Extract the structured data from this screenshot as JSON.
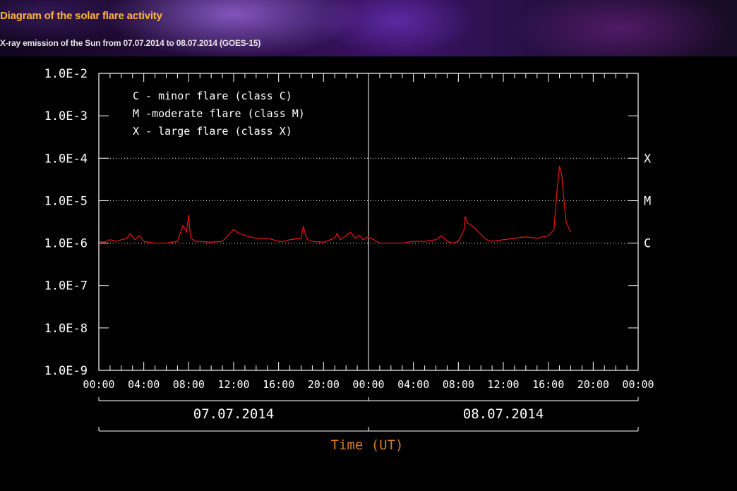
{
  "page": {
    "title": "Diagram of the solar flare activity",
    "subtitle": "X-ray emission of the Sun from 07.07.2014 to 08.07.2014 (GOES-15)"
  },
  "colors": {
    "title": "#ffb43c",
    "axis_label": "#d97a1e",
    "series": "#e31010",
    "axes": "#ffffff"
  },
  "chart_data": {
    "type": "line",
    "xlabel": "Time (UT)",
    "ylabel": "",
    "y_scale": "log",
    "ylim": [
      1e-09,
      0.01
    ],
    "y_tick_labels": [
      "1.0E-9",
      "1.0E-8",
      "1.0E-7",
      "1.0E-6",
      "1.0E-5",
      "1.0E-4",
      "1.0E-3",
      "1.0E-2"
    ],
    "x_unit": "hours",
    "xlim": [
      0,
      48
    ],
    "x_tick_labels": [
      "00:00",
      "04:00",
      "08:00",
      "12:00",
      "16:00",
      "20:00",
      "00:00",
      "04:00",
      "08:00",
      "12:00",
      "16:00",
      "20:00",
      "00:00"
    ],
    "day_labels": [
      "07.07.2014",
      "08.07.2014"
    ],
    "class_levels": [
      {
        "label": "X",
        "value": 0.0001
      },
      {
        "label": "M",
        "value": 1e-05
      },
      {
        "label": "C",
        "value": 1e-06
      }
    ],
    "legend": [
      "C - minor flare (class C)",
      "M -moderate flare (class M)",
      "X - large flare (class X)"
    ],
    "legend_position": "top-left",
    "grid": "dotted lines at class levels",
    "series": [
      {
        "x": [
          0,
          0.5,
          1,
          1.5,
          2.5,
          2.8,
          3,
          3.2,
          3.6,
          4,
          4.4,
          5,
          6,
          7,
          7.5,
          7.8,
          8,
          8.1,
          8.2,
          8.4,
          8.6,
          9,
          10,
          11,
          11.5,
          12,
          12.2,
          12.5,
          13,
          14,
          15,
          15.5,
          16,
          16.5,
          17,
          18,
          18.2,
          18.4,
          18.6,
          19,
          20,
          21,
          21.2,
          21.5,
          22,
          22.4,
          22.8,
          23.2,
          23.5,
          24,
          25,
          26,
          27,
          28,
          29,
          30,
          30.5,
          31,
          31.5,
          32,
          32.5,
          32.6,
          32.8,
          33,
          33.5,
          34,
          34.5,
          35,
          36,
          37,
          38,
          39,
          40,
          40.5,
          40.8,
          41,
          41.2,
          41.4,
          41.6,
          42
        ],
        "y": [
          1.1e-06,
          1.05e-06,
          1.2e-06,
          1.1e-06,
          1.3e-06,
          1.7e-06,
          1.4e-06,
          1.2e-06,
          1.5e-06,
          1.1e-06,
          1.05e-06,
          1e-06,
          1e-06,
          1.1e-06,
          2.6e-06,
          1.8e-06,
          4.5e-06,
          2e-06,
          1.3e-06,
          1.2e-06,
          1.1e-06,
          1.1e-06,
          1.05e-06,
          1.1e-06,
          1.5e-06,
          2.1e-06,
          1.9e-06,
          1.7e-06,
          1.5e-06,
          1.3e-06,
          1.3e-06,
          1.2e-06,
          1.1e-06,
          1.1e-06,
          1.2e-06,
          1.3e-06,
          2.5e-06,
          1.5e-06,
          1.2e-06,
          1.1e-06,
          1.05e-06,
          1.3e-06,
          1.7e-06,
          1.2e-06,
          1.5e-06,
          1.8e-06,
          1.3e-06,
          1.5e-06,
          1.2e-06,
          1.4e-06,
          1e-06,
          1e-06,
          1e-06,
          1.1e-06,
          1.1e-06,
          1.2e-06,
          1.5e-06,
          1.1e-06,
          1e-06,
          1.1e-06,
          2e-06,
          4.2e-06,
          3e-06,
          2.8e-06,
          2.2e-06,
          1.6e-06,
          1.2e-06,
          1.1e-06,
          1.2e-06,
          1.3e-06,
          1.4e-06,
          1.3e-06,
          1.5e-06,
          2e-06,
          2e-05,
          6.5e-05,
          4e-05,
          1e-05,
          3e-06,
          1.8e-06
        ]
      }
    ]
  }
}
